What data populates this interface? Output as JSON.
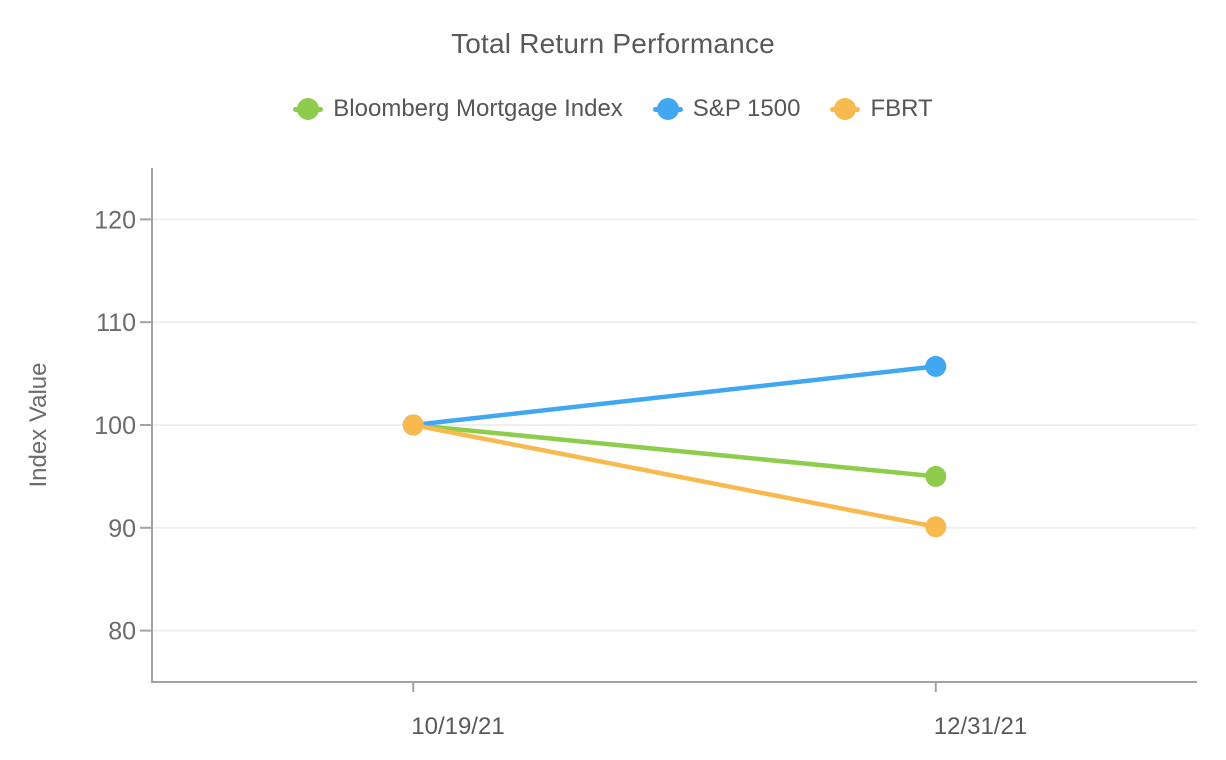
{
  "chart_data": {
    "type": "line",
    "title": "Total Return Performance",
    "xlabel": "",
    "ylabel": "Index Value",
    "categories": [
      "10/19/21",
      "12/31/21"
    ],
    "series": [
      {
        "name": "Bloomberg Mortgage Index",
        "color": "#8ECC4C",
        "values": [
          100,
          95.0
        ]
      },
      {
        "name": "S&P 1500",
        "color": "#41A7F0",
        "values": [
          100,
          105.7
        ]
      },
      {
        "name": "FBRT",
        "color": "#F8BA4E",
        "values": [
          100,
          90.1
        ]
      }
    ],
    "ylim": [
      75,
      125
    ],
    "yticks": [
      80,
      90,
      100,
      110,
      120
    ],
    "grid": "horizontal-only",
    "legend_position": "top",
    "marker": "circle",
    "colors": {
      "axis": "#A0A2A4",
      "gridline": "#EFEFEF",
      "title_text": "#58595B",
      "x_label_text": "#58595B",
      "y_tick_text": "#6A6B6D",
      "y_axis_title_text": "#6B6C6E"
    }
  }
}
